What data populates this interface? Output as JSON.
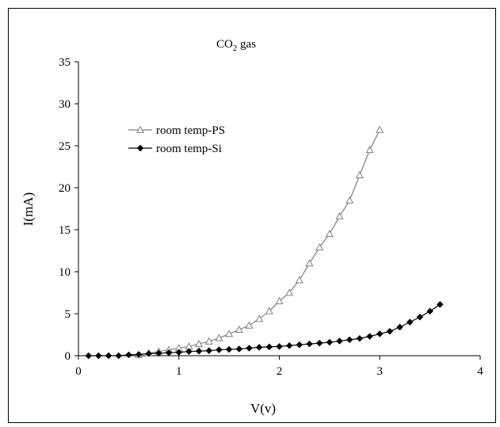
{
  "chart_data": {
    "type": "line",
    "title_main": "CO",
    "title_sub": "2",
    "title_rest": " gas",
    "xlabel": "V(v)",
    "ylabel": "I(mA)",
    "xlim": [
      0,
      4
    ],
    "ylim": [
      0,
      35
    ],
    "xticks": [
      0,
      1,
      2,
      3,
      4
    ],
    "yticks": [
      0,
      5,
      10,
      15,
      20,
      25,
      30,
      35
    ],
    "grid": false,
    "legend_position": "upper-left",
    "series": [
      {
        "name": "room temp-PS",
        "marker": "open-triangle",
        "color": "#808080",
        "x": [
          0.6,
          0.7,
          0.8,
          0.9,
          1.0,
          1.1,
          1.2,
          1.3,
          1.4,
          1.5,
          1.6,
          1.7,
          1.8,
          1.9,
          2.0,
          2.1,
          2.2,
          2.3,
          2.4,
          2.5,
          2.6,
          2.7,
          2.8,
          2.9,
          3.0
        ],
        "y": [
          0.1,
          0.3,
          0.5,
          0.7,
          0.9,
          1.1,
          1.4,
          1.7,
          2.1,
          2.6,
          3.1,
          3.6,
          4.4,
          5.3,
          6.5,
          7.5,
          9.0,
          11.0,
          12.9,
          14.5,
          16.6,
          18.5,
          21.5,
          24.5,
          26.9
        ]
      },
      {
        "name": "room temp-Si",
        "marker": "filled-diamond",
        "color": "#000000",
        "x": [
          0.1,
          0.2,
          0.3,
          0.4,
          0.5,
          0.6,
          0.7,
          0.8,
          0.9,
          1.0,
          1.1,
          1.2,
          1.3,
          1.4,
          1.5,
          1.6,
          1.7,
          1.8,
          1.9,
          2.0,
          2.1,
          2.2,
          2.3,
          2.4,
          2.5,
          2.6,
          2.7,
          2.8,
          2.9,
          3.0,
          3.1,
          3.2,
          3.3,
          3.4,
          3.5,
          3.6
        ],
        "y": [
          0.0,
          0.0,
          0.0,
          0.0,
          0.1,
          0.15,
          0.25,
          0.3,
          0.35,
          0.4,
          0.5,
          0.55,
          0.6,
          0.7,
          0.75,
          0.8,
          0.9,
          1.0,
          1.05,
          1.1,
          1.2,
          1.3,
          1.4,
          1.5,
          1.6,
          1.75,
          1.9,
          2.05,
          2.3,
          2.6,
          2.9,
          3.4,
          4.0,
          4.6,
          5.3,
          6.1
        ]
      }
    ]
  }
}
